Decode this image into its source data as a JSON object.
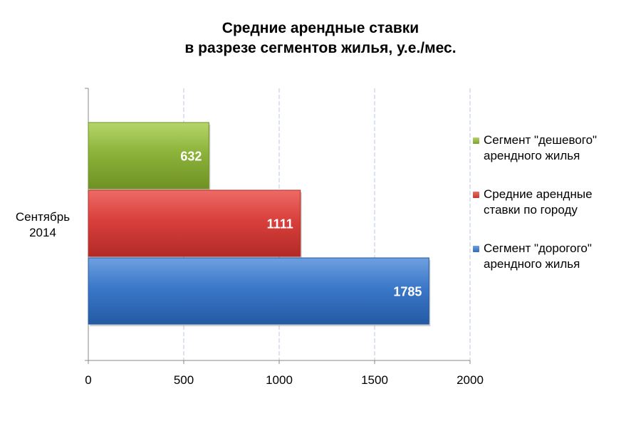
{
  "chart_data": {
    "type": "bar",
    "orientation": "horizontal",
    "title_line1": "Средние арендные ставки",
    "title_line2": "в разрезе сегментов жилья, у.е./мес.",
    "categories": [
      "Сентябрь 2014"
    ],
    "category_line1": "Сентябрь",
    "category_line2": "2014",
    "series": [
      {
        "name": "Сегмент \"дешевого\" арендного жилья",
        "values": [
          632
        ],
        "color": "#8db33a",
        "color_light": "#b5d56a",
        "color_dark": "#6f9124",
        "legend_color": "#7ea02f"
      },
      {
        "name": "Средние арендные ставки по городу",
        "values": [
          1111
        ],
        "color": "#d9403c",
        "color_light": "#ee6b66",
        "color_dark": "#b22a27",
        "legend_color": "#c0392b"
      },
      {
        "name": "Сегмент \"дорогого\" арендного жилья",
        "values": [
          1785
        ],
        "color": "#3b78c9",
        "color_light": "#6ea0e0",
        "color_dark": "#245aa3",
        "legend_color": "#2f6db8"
      }
    ],
    "xlim": [
      0,
      2000
    ],
    "ticks": [
      0,
      500,
      1000,
      1500,
      2000
    ],
    "grid": true,
    "legend_position": "right"
  }
}
